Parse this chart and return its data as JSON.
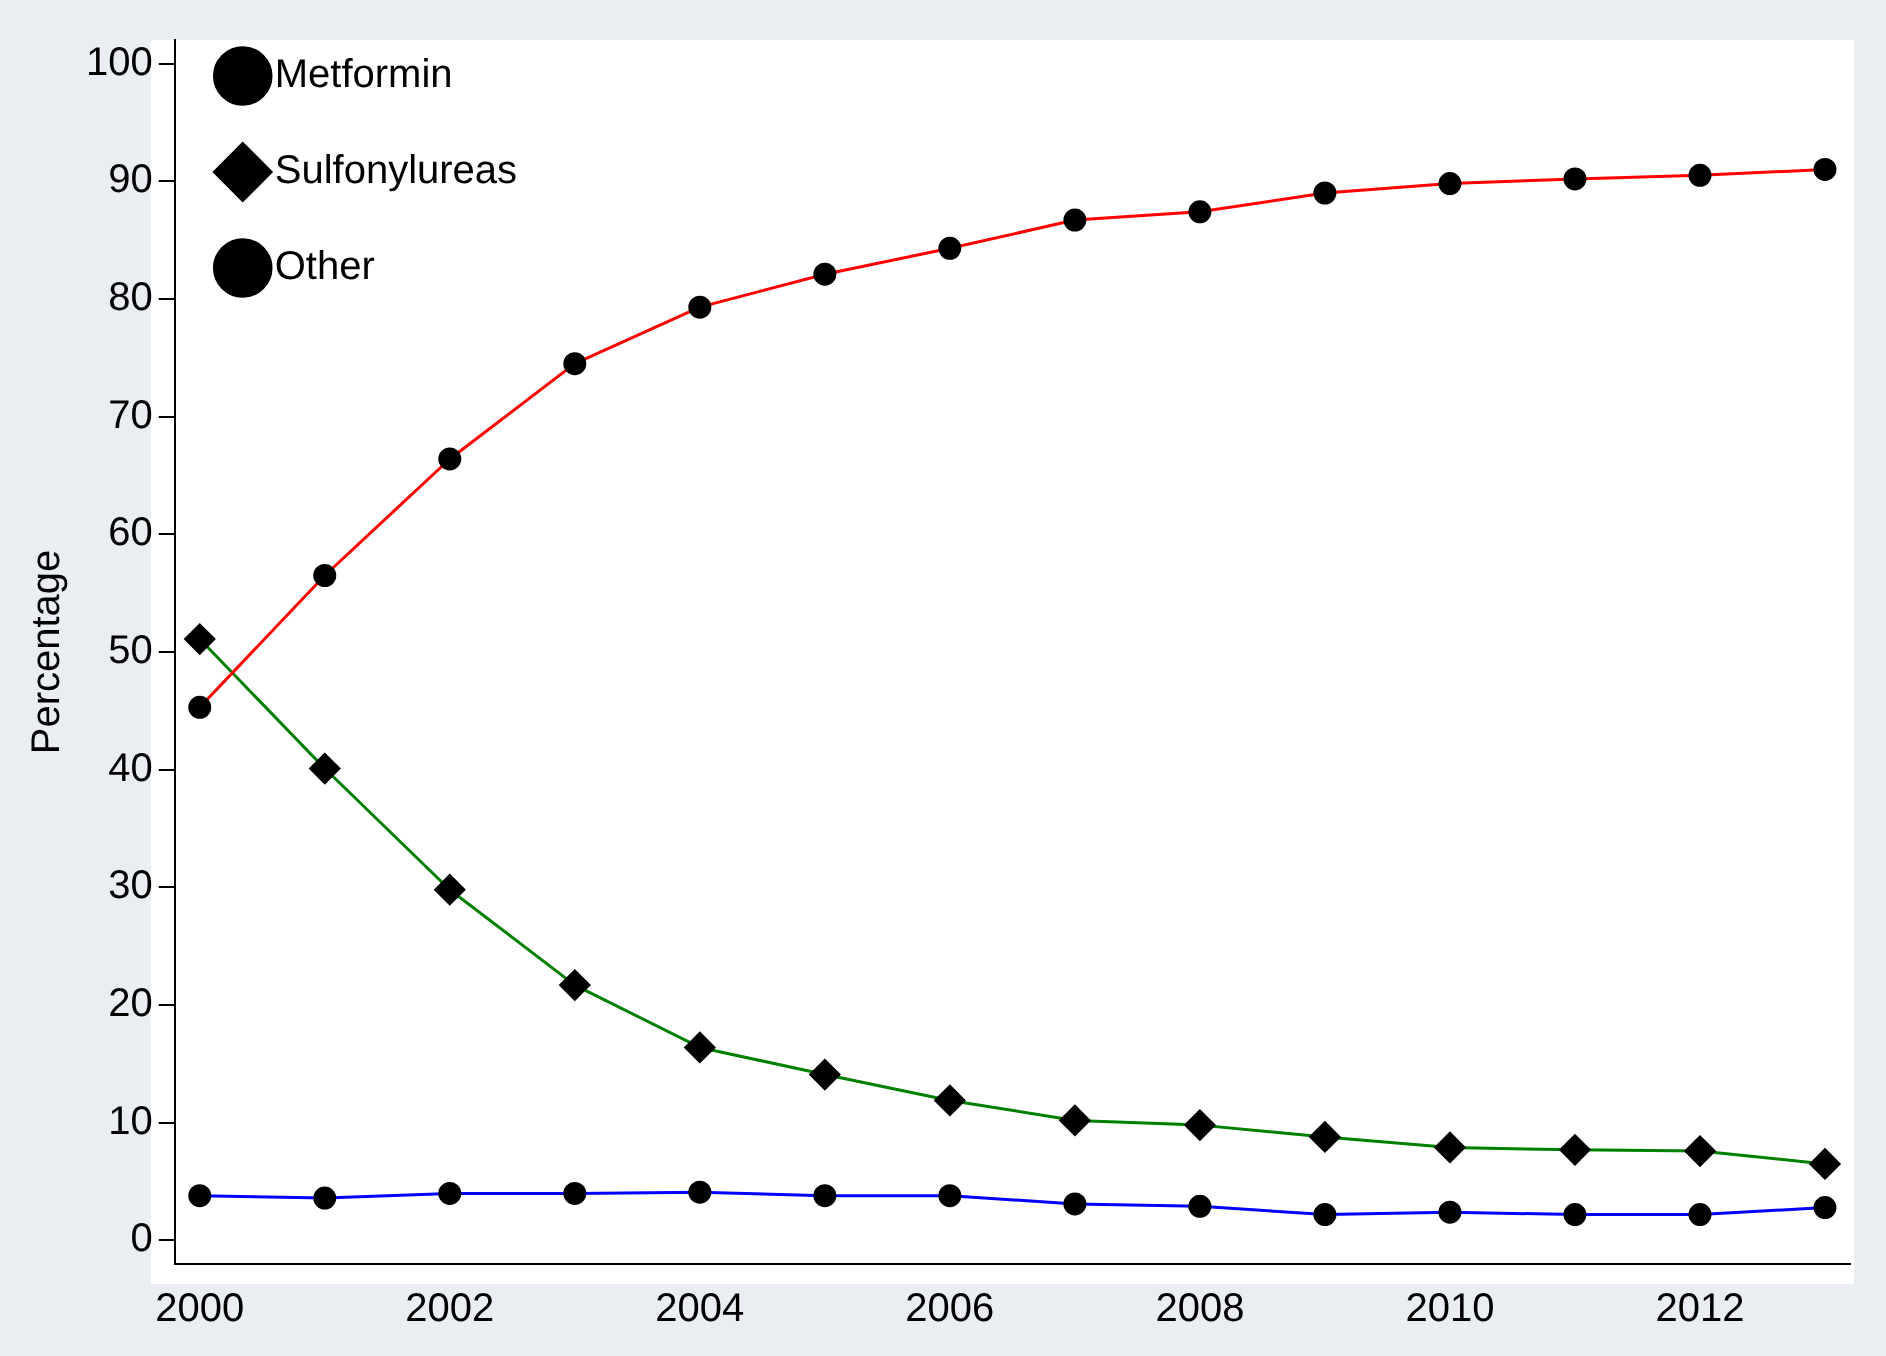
{
  "chart_data": {
    "type": "line",
    "ylabel": "Percentage",
    "x": [
      2000,
      2001,
      2002,
      2003,
      2004,
      2005,
      2006,
      2007,
      2008,
      2009,
      2010,
      2011,
      2012,
      2013
    ],
    "series": [
      {
        "name": "Metformin",
        "color": "#ff0000",
        "marker": "circle",
        "values": [
          45.3,
          56.5,
          66.4,
          74.5,
          79.3,
          82.1,
          84.3,
          86.7,
          87.4,
          89.0,
          89.8,
          90.2,
          90.5,
          91.0
        ]
      },
      {
        "name": "Sulfonylureas",
        "color": "#008000",
        "marker": "diamond",
        "values": [
          51.1,
          40.1,
          29.8,
          21.7,
          16.4,
          14.1,
          11.9,
          10.2,
          9.8,
          8.8,
          7.9,
          7.7,
          7.6,
          6.5
        ]
      },
      {
        "name": "Other",
        "color": "#0000ff",
        "marker": "circle",
        "values": [
          3.8,
          3.6,
          4.0,
          4.0,
          4.1,
          3.8,
          3.8,
          3.1,
          2.9,
          2.2,
          2.4,
          2.2,
          2.2,
          2.8
        ]
      }
    ],
    "xlim": [
      1999.8,
      2013.2
    ],
    "xticks": [
      2000,
      2002,
      2004,
      2006,
      2008,
      2010,
      2012
    ],
    "ylim": [
      -2,
      102
    ],
    "yticks": [
      0,
      10,
      20,
      30,
      40,
      50,
      60,
      70,
      80,
      90,
      100
    ],
    "grid": false,
    "legend": "top left",
    "line_style": "solid"
  }
}
